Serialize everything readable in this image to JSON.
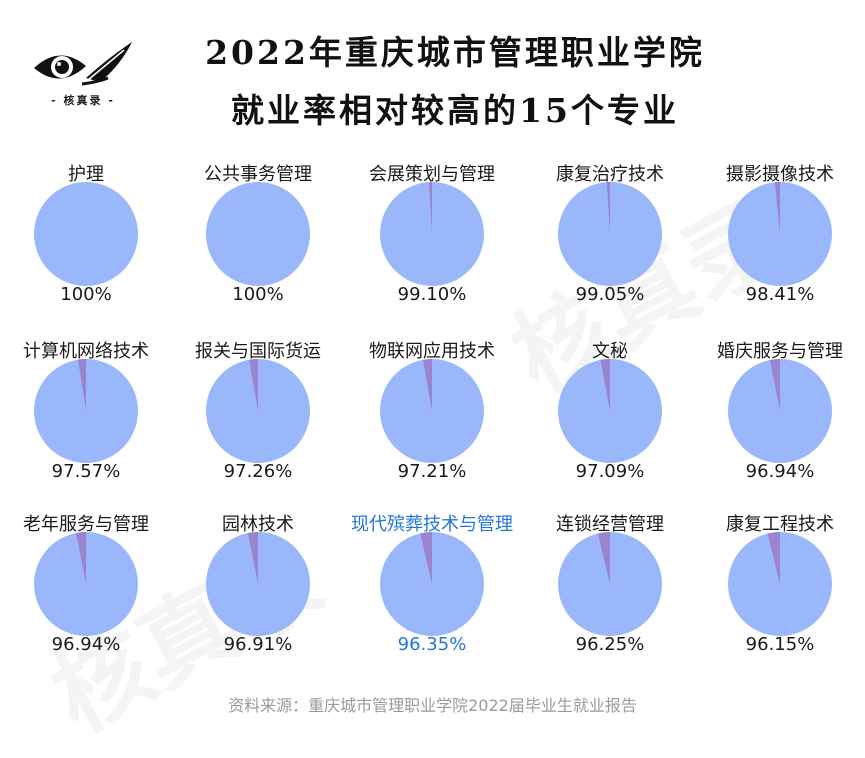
{
  "logo": {
    "text": "- 核真录 -",
    "icon": "eye-feather-logo-icon"
  },
  "title_line1": "2022年重庆城市管理职业学院",
  "title_line2": "就业率相对较高的15个专业",
  "source": "资料来源：重庆城市管理职业学院2022届毕业生就业报告",
  "watermark": "核真录",
  "colors": {
    "main": "#9bb7fb",
    "remainder": "#9a84cf",
    "highlight": "#2277dd"
  },
  "chart_data": {
    "type": "pie",
    "title": "2022年重庆城市管理职业学院就业率相对较高的15个专业",
    "items": [
      {
        "name": "护理",
        "value": 100,
        "label": "100%"
      },
      {
        "name": "公共事务管理",
        "value": 100,
        "label": "100%"
      },
      {
        "name": "会展策划与管理",
        "value": 99.1,
        "label": "99.10%"
      },
      {
        "name": "康复治疗技术",
        "value": 99.05,
        "label": "99.05%"
      },
      {
        "name": "摄影摄像技术",
        "value": 98.41,
        "label": "98.41%"
      },
      {
        "name": "计算机网络技术",
        "value": 97.57,
        "label": "97.57%"
      },
      {
        "name": "报关与国际货运",
        "value": 97.26,
        "label": "97.26%"
      },
      {
        "name": "物联网应用技术",
        "value": 97.21,
        "label": "97.21%"
      },
      {
        "name": "文秘",
        "value": 97.09,
        "label": "97.09%"
      },
      {
        "name": "婚庆服务与管理",
        "value": 96.94,
        "label": "96.94%"
      },
      {
        "name": "老年服务与管理",
        "value": 96.94,
        "label": "96.94%"
      },
      {
        "name": "园林技术",
        "value": 96.91,
        "label": "96.91%"
      },
      {
        "name": "现代殡葬技术与管理",
        "value": 96.35,
        "label": "96.35%",
        "highlight": true
      },
      {
        "name": "连锁经营管理",
        "value": 96.25,
        "label": "96.25%"
      },
      {
        "name": "康复工程技术",
        "value": 96.15,
        "label": "96.15%"
      }
    ]
  }
}
